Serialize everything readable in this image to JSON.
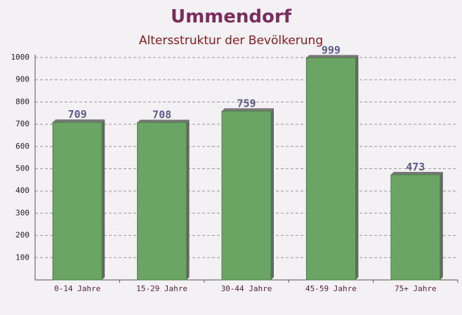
{
  "chart_data": {
    "type": "bar",
    "title": "Ummendorf",
    "subtitle": "Altersstruktur der Bevölkerung",
    "categories": [
      "0-14 Jahre",
      "15-29 Jahre",
      "30-44 Jahre",
      "45-59 Jahre",
      "75+ Jahre"
    ],
    "values": [
      709,
      708,
      759,
      999,
      473
    ],
    "color": "#6aa564",
    "ylim": [
      0,
      1000
    ],
    "yticks": [
      100,
      200,
      300,
      400,
      500,
      600,
      700,
      800,
      900,
      1000
    ],
    "grid": true
  }
}
